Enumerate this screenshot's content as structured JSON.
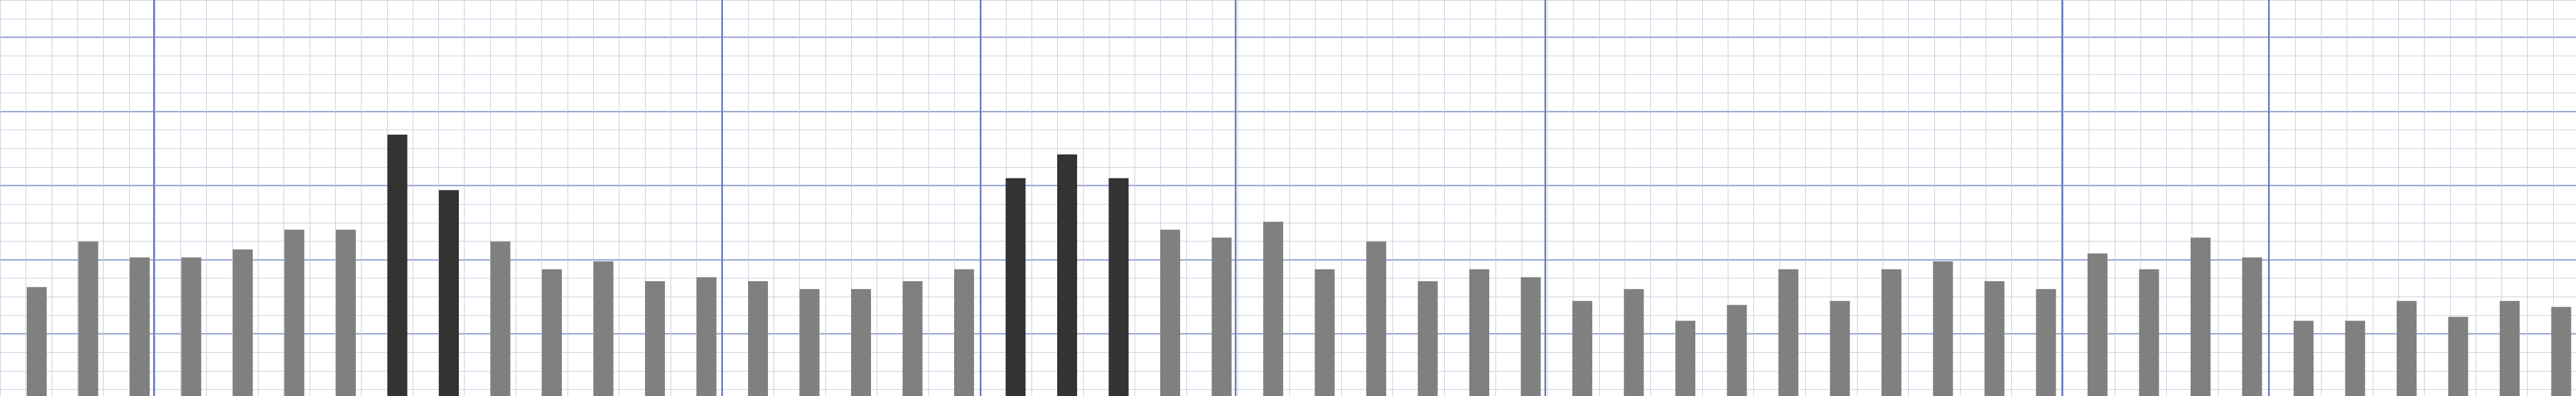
{
  "chart_data": {
    "type": "bar",
    "ylim": [
      0,
      100
    ],
    "grid": true,
    "values": [
      27.5,
      39,
      35,
      35,
      37,
      42,
      42,
      66,
      52,
      39,
      32,
      34,
      29,
      30,
      29,
      27,
      27,
      29,
      32,
      55,
      61,
      55,
      42,
      40,
      44,
      32,
      39,
      29,
      32,
      30,
      24,
      27,
      19,
      23,
      32,
      24,
      32,
      34,
      29,
      27,
      36,
      32,
      40,
      35,
      19,
      19,
      24,
      20,
      24,
      22.5
    ],
    "highlighted": [
      7,
      8,
      19,
      20,
      21
    ],
    "colors": {
      "bar": "#808080",
      "bar_highlight": "#333333",
      "grid_minor": "#c4c7d9",
      "grid_major": "#8090c8",
      "grid_section": "#6a80c0",
      "background": "#ffffff"
    }
  }
}
